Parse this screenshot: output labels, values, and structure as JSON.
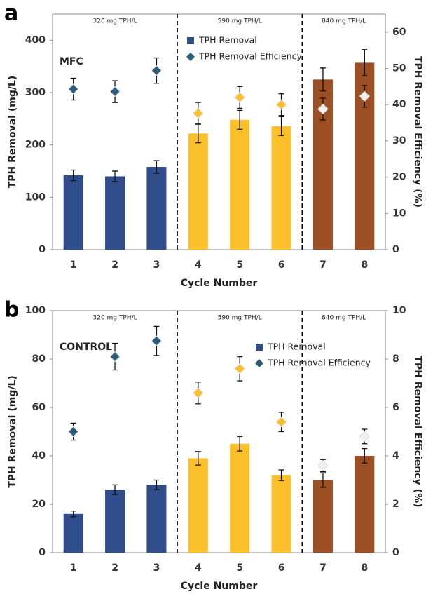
{
  "chart_data": [
    {
      "type": "bar",
      "panel_label": "a",
      "annotation": "MFC",
      "regions": [
        "320 mg TPH/L",
        "590 mg TPH/L",
        "840 mg TPH/L"
      ],
      "xlabel": "Cycle Number",
      "ylabel": "TPH Removal (mg/L)",
      "y2label": "TPH Removal Efficiency (%)",
      "categories": [
        "1",
        "2",
        "3",
        "4",
        "5",
        "6",
        "7",
        "8"
      ],
      "ylim": [
        0,
        450
      ],
      "yticks": [
        0,
        100,
        200,
        300,
        400
      ],
      "y2lim": [
        0,
        65
      ],
      "y2ticks": [
        0,
        10,
        20,
        30,
        40,
        50,
        60
      ],
      "legend": "upper center",
      "series": [
        {
          "name": "TPH Removal",
          "type": "bar",
          "color": "#2e4d8a",
          "colors": [
            "#2e4d8a",
            "#2e4d8a",
            "#2e4d8a",
            "#fbbf2a",
            "#fbbf2a",
            "#fbbf2a",
            "#9c4f22",
            "#9c4f22"
          ],
          "values": [
            142,
            140,
            158,
            222,
            248,
            236,
            325,
            357
          ],
          "errors": [
            10,
            10,
            12,
            18,
            18,
            18,
            22,
            25
          ]
        },
        {
          "name": "TPH Removal Efficiency",
          "type": "scatter",
          "axis": "y2",
          "color": "#2b5c7a",
          "colors": [
            "#2b5c7a",
            "#2b5c7a",
            "#2b5c7a",
            "#fbbf2a",
            "#fbbf2a",
            "#fbbf2a",
            "#f0f0f0",
            "#f0f0f0"
          ],
          "values": [
            44.3,
            43.6,
            49.4,
            37.6,
            42,
            40,
            38.8,
            42.3
          ],
          "errors": [
            3,
            3,
            3.5,
            3,
            3,
            3,
            3,
            3
          ]
        }
      ]
    },
    {
      "type": "bar",
      "panel_label": "b",
      "annotation": "CONTROL",
      "regions": [
        "320 mg TPH/L",
        "590 mg TPH/L",
        "840 mg TPH/L"
      ],
      "xlabel": "Cycle Number",
      "ylabel": "TPH Removal (mg/L)",
      "y2label": "TPH Removal Efficiency (%)",
      "categories": [
        "1",
        "2",
        "3",
        "4",
        "5",
        "6",
        "7",
        "8"
      ],
      "ylim": [
        0,
        100
      ],
      "yticks": [
        0,
        20,
        40,
        60,
        80,
        100
      ],
      "y2lim": [
        0,
        10
      ],
      "y2ticks": [
        0,
        2,
        4,
        6,
        8,
        10
      ],
      "legend": "upper right",
      "series": [
        {
          "name": "TPH Removal",
          "type": "bar",
          "color": "#2e4d8a",
          "colors": [
            "#2e4d8a",
            "#2e4d8a",
            "#2e4d8a",
            "#fbbf2a",
            "#fbbf2a",
            "#fbbf2a",
            "#9c4f22",
            "#9c4f22"
          ],
          "values": [
            16,
            26,
            28,
            39,
            45,
            32,
            30,
            40
          ],
          "errors": [
            1.2,
            2,
            2,
            2.8,
            3,
            2.2,
            3,
            3
          ]
        },
        {
          "name": "TPH Removal Efficiency",
          "type": "scatter",
          "axis": "y2",
          "color": "#2b5c7a",
          "colors": [
            "#2b5c7a",
            "#2b5c7a",
            "#2b5c7a",
            "#fbbf2a",
            "#fbbf2a",
            "#fbbf2a",
            "#f0f0f0",
            "#f0f0f0"
          ],
          "values": [
            5.0,
            8.1,
            8.75,
            6.6,
            7.6,
            5.4,
            3.6,
            4.8
          ],
          "errors": [
            0.35,
            0.55,
            0.6,
            0.45,
            0.5,
            0.4,
            0.25,
            0.3
          ]
        }
      ]
    }
  ]
}
